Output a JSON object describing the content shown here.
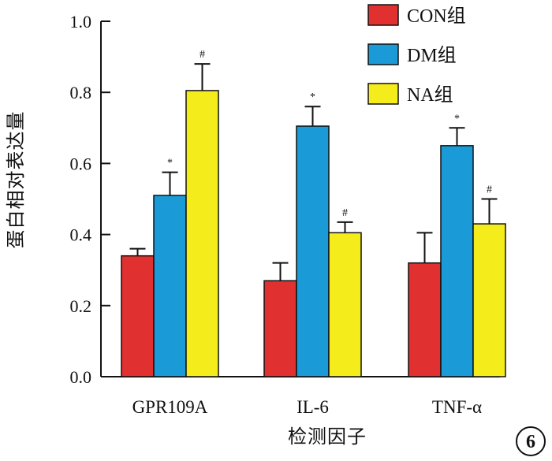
{
  "chart_data": {
    "type": "bar",
    "title": "",
    "xlabel": "检测因子",
    "ylabel": "蛋白相对表达量",
    "ylim": [
      0,
      1.0
    ],
    "yticks": [
      "0.0",
      "0.2",
      "0.4",
      "0.6",
      "0.8",
      "1.0"
    ],
    "categories": [
      "GPR109A",
      "IL-6",
      "TNF-α"
    ],
    "series": [
      {
        "name": "CON组",
        "color": "#e03030",
        "values": [
          0.34,
          0.27,
          0.32
        ],
        "errors": [
          0.02,
          0.05,
          0.085
        ],
        "marks": [
          "",
          "",
          ""
        ]
      },
      {
        "name": "DM组",
        "color": "#1a9bd7",
        "values": [
          0.51,
          0.705,
          0.65
        ],
        "errors": [
          0.065,
          0.055,
          0.05
        ],
        "marks": [
          "*",
          "*",
          "*"
        ]
      },
      {
        "name": "NA组",
        "color": "#f5ec1c",
        "values": [
          0.805,
          0.405,
          0.43
        ],
        "errors": [
          0.075,
          0.03,
          0.07
        ],
        "marks": [
          "#",
          "#",
          "#"
        ]
      }
    ],
    "legend_position": "top-right",
    "grid": false,
    "panel_label": "6"
  }
}
